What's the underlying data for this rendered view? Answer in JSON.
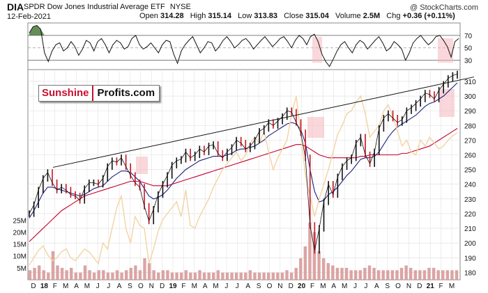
{
  "header": {
    "symbol": "DIA",
    "name": "SPDR Dow Jones Industrial Average ETF",
    "exchange": "NYSE",
    "date": "12-Feb-2021",
    "open_label": "Open",
    "open": "314.28",
    "high_label": "High",
    "high": "315.14",
    "low_label": "Low",
    "low": "313.83",
    "close_label": "Close",
    "close": "315.04",
    "volume_label": "Volume",
    "volume": "2.5M",
    "chg_label": "Chg",
    "chg": "+0.36 (+0.11%)",
    "credit": "@ StockCharts.com"
  },
  "logo": {
    "part1": "Sunshine",
    "part2": "Profits.com"
  },
  "colors": {
    "price": "#111111",
    "up_bar": "#111111",
    "down_bar": "#cc1122",
    "ma_short": "#1a237e",
    "ma_long": "#c2002a",
    "compare": "#f3d3a4",
    "volume": "#d89a9a",
    "trendline": "#111111",
    "highlight": "#f4b6bc",
    "rsi_fill_over": "#4a7a3a",
    "grid": "#dddddd"
  },
  "chart_data": [
    {
      "type": "line",
      "panel": "rsi",
      "yticks": [
        30,
        50,
        70
      ],
      "ylim": [
        15,
        90
      ],
      "series": [
        {
          "values": [
            74,
            84,
            86,
            80,
            42,
            28,
            45,
            55,
            58,
            45,
            50,
            60,
            52,
            38,
            48,
            62,
            58,
            45,
            60,
            65,
            55,
            42,
            55,
            62,
            58,
            48,
            52,
            65,
            70,
            55,
            48,
            52,
            58,
            50,
            42,
            55,
            62,
            60,
            40,
            25,
            45,
            55,
            62,
            68,
            55,
            42,
            50,
            60,
            58,
            45,
            52,
            62,
            68,
            60,
            50,
            55,
            62,
            65,
            58,
            48,
            55,
            62,
            68,
            60,
            52,
            58,
            65,
            68,
            60,
            50,
            62,
            70,
            65,
            55,
            68,
            72,
            60,
            40,
            28,
            20,
            32,
            45,
            55,
            60,
            50,
            42,
            55,
            62,
            58,
            48,
            55,
            62,
            68,
            58,
            45,
            50,
            60,
            55,
            48,
            30,
            42,
            58,
            65,
            70,
            62,
            55,
            60,
            68,
            70,
            62,
            52,
            35,
            60,
            65
          ]
        }
      ]
    },
    {
      "type": "line",
      "panel": "price",
      "x_label": "",
      "ylim": [
        175,
        318
      ],
      "yticks": [
        180,
        190,
        200,
        210,
        220,
        230,
        240,
        250,
        260,
        270,
        280,
        290,
        300,
        310
      ],
      "month_labels": [
        "D",
        "18",
        "F",
        "M",
        "A",
        "M",
        "J",
        "J",
        "A",
        "S",
        "O",
        "N",
        "D",
        "19",
        "F",
        "M",
        "A",
        "M",
        "J",
        "J",
        "A",
        "S",
        "O",
        "N",
        "D",
        "20",
        "F",
        "M",
        "A",
        "M",
        "J",
        "J",
        "A",
        "S",
        "O",
        "N",
        "D",
        "21",
        "F",
        "M"
      ],
      "year_labels": [
        "18",
        "19",
        "20",
        "21"
      ],
      "series": [
        {
          "role": "price",
          "values": [
            220,
            226,
            236,
            244,
            248,
            241,
            236,
            238,
            236,
            233,
            232,
            229,
            237,
            241,
            241,
            240,
            244,
            252,
            256,
            255,
            258,
            252,
            246,
            241,
            238,
            225,
            215,
            223,
            233,
            240,
            246,
            253,
            256,
            257,
            262,
            258,
            260,
            264,
            262,
            266,
            267,
            261,
            258,
            262,
            265,
            270,
            268,
            264,
            266,
            270,
            276,
            278,
            282,
            280,
            283,
            286,
            290,
            289,
            282,
            275,
            258,
            212,
            195,
            210,
            228,
            240,
            233,
            245,
            252,
            256,
            258,
            268,
            272,
            260,
            254,
            262,
            278,
            285,
            288,
            285,
            282,
            284,
            290,
            292,
            295,
            298,
            302,
            301,
            298,
            304,
            308,
            312,
            314,
            315
          ]
        },
        {
          "role": "ma_short",
          "values": [
            217,
            222,
            228,
            234,
            238,
            238,
            237,
            236,
            235,
            234,
            233,
            232,
            233,
            235,
            237,
            238,
            239,
            242,
            245,
            247,
            249,
            249,
            248,
            245,
            242,
            237,
            232,
            230,
            231,
            233,
            236,
            240,
            244,
            247,
            250,
            252,
            254,
            256,
            257,
            258,
            259,
            259,
            259,
            260,
            261,
            263,
            264,
            264,
            265,
            266,
            268,
            270,
            273,
            275,
            277,
            279,
            281,
            282,
            281,
            277,
            268,
            250,
            235,
            228,
            229,
            233,
            235,
            238,
            242,
            246,
            249,
            253,
            257,
            258,
            258,
            259,
            262,
            267,
            272,
            276,
            279,
            281,
            283,
            285,
            287,
            290,
            293,
            295,
            296,
            298,
            300,
            303,
            306,
            309
          ]
        },
        {
          "role": "ma_long",
          "values": [
            201,
            204,
            207,
            210,
            213,
            216,
            219,
            222,
            224,
            226,
            228,
            230,
            232,
            233,
            234,
            235,
            236,
            237,
            238,
            239,
            240,
            241,
            242,
            242,
            242,
            241,
            240,
            239,
            239,
            239,
            239,
            240,
            241,
            242,
            243,
            244,
            245,
            246,
            247,
            248,
            249,
            250,
            251,
            252,
            253,
            254,
            255,
            256,
            257,
            258,
            259,
            260,
            261,
            262,
            263,
            264,
            265,
            266,
            267,
            267,
            266,
            264,
            262,
            260,
            259,
            258,
            258,
            258,
            258,
            258,
            258,
            258,
            259,
            259,
            260,
            260,
            260,
            260,
            260,
            260,
            260,
            261,
            261,
            262,
            263,
            264,
            265,
            266,
            268,
            270,
            272,
            274,
            276,
            278
          ]
        },
        {
          "role": "compare",
          "values": [
            185,
            190,
            195,
            198,
            192,
            188,
            190,
            194,
            196,
            190,
            188,
            192,
            196,
            194,
            190,
            186,
            200,
            196,
            210,
            224,
            232,
            210,
            200,
            218,
            212,
            210,
            186,
            196,
            208,
            216,
            220,
            224,
            228,
            218,
            236,
            212,
            210,
            218,
            224,
            230,
            238,
            244,
            250,
            254,
            258,
            262,
            256,
            260,
            268,
            272,
            268,
            276,
            262,
            250,
            258,
            264,
            270,
            288,
            300,
            274,
            246,
            232,
            218,
            230,
            240,
            250,
            262,
            274,
            280,
            288,
            290,
            296,
            300,
            288,
            272,
            276,
            280,
            290,
            294,
            286,
            276,
            266,
            270,
            262,
            260,
            270,
            266,
            272,
            268,
            264,
            266,
            270,
            273,
            275
          ]
        }
      ],
      "trendline": {
        "from_value": 251.5,
        "to_value": 313
      }
    },
    {
      "type": "bar",
      "panel": "volume",
      "yticks_label": [
        "5M",
        "10M",
        "15M",
        "20M",
        "25M"
      ],
      "ylim": [
        0,
        28
      ],
      "values": [
        4,
        5,
        6,
        4,
        3,
        12,
        6,
        5,
        4,
        5,
        3,
        3,
        6,
        4,
        3,
        4,
        4,
        3,
        3,
        4,
        3,
        4,
        5,
        6,
        4,
        9,
        7,
        4,
        3,
        4,
        4,
        3,
        3,
        3,
        4,
        3,
        3,
        4,
        3,
        3,
        3,
        4,
        3,
        3,
        3,
        3,
        3,
        3,
        4,
        3,
        3,
        3,
        3,
        3,
        3,
        3,
        4,
        3,
        5,
        9,
        14,
        24,
        20,
        12,
        9,
        7,
        6,
        5,
        5,
        5,
        4,
        4,
        4,
        5,
        6,
        5,
        4,
        4,
        4,
        4,
        4,
        5,
        6,
        5,
        4,
        4,
        4,
        5,
        5,
        4,
        4,
        4,
        4,
        4
      ]
    }
  ]
}
